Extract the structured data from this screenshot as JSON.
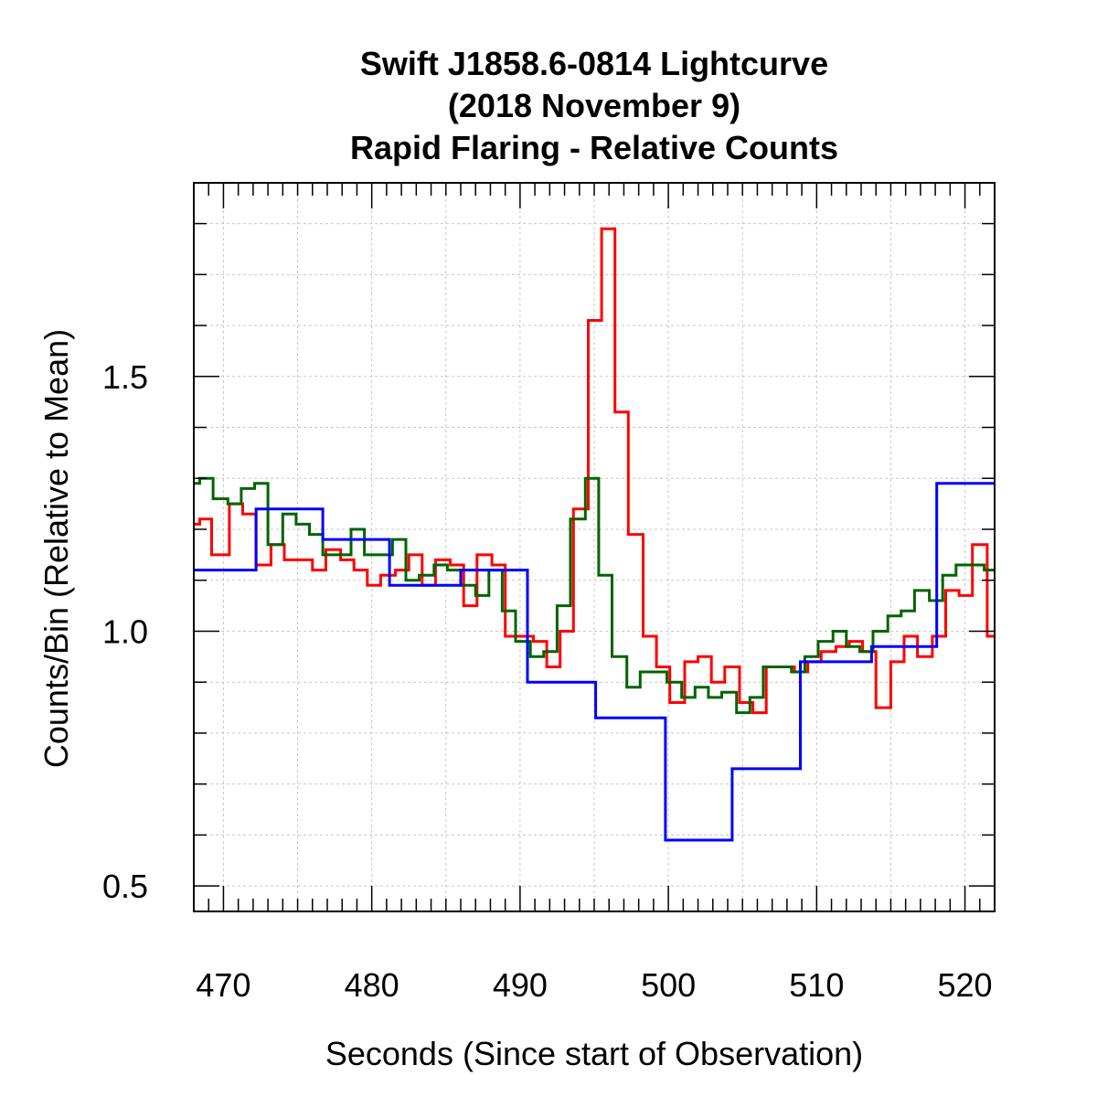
{
  "chart_data": {
    "type": "line",
    "title": [
      "Swift J1858.6-0814 Lightcurve",
      "(2018 November 9)",
      "Rapid Flaring - Relative Counts"
    ],
    "xlabel": "Seconds (Since start of Observation)",
    "ylabel": "Counts/Bin (Relative to Mean)",
    "xlim": [
      468,
      522
    ],
    "ylim": [
      0.45,
      1.88
    ],
    "x_ticks": [
      470,
      480,
      490,
      500,
      510,
      520
    ],
    "x_tick_labels": [
      "470",
      "480",
      "490",
      "500",
      "510",
      "520"
    ],
    "y_ticks": [
      0.5,
      1.0,
      1.5
    ],
    "y_tick_labels": [
      "0.5",
      "1.0",
      "1.5"
    ],
    "x_minor_step": 1,
    "y_minor_step": 0.1,
    "grid": true,
    "legend": "none",
    "series": [
      {
        "color": "#ff0000",
        "step": "post",
        "x": [
          468,
          468.4,
          469.2,
          470.4,
          471.3,
          472.2,
          473.2,
          474.1,
          475.0,
          476.0,
          476.9,
          477.9,
          478.8,
          479.7,
          480.6,
          481.6,
          482.5,
          483.4,
          484.3,
          485.3,
          486.2,
          487.1,
          488.1,
          489.0,
          489.9,
          490.9,
          491.8,
          492.7,
          493.6,
          494.6,
          495.5,
          496.4,
          497.3,
          498.3,
          499.2,
          500.1,
          501.1,
          502.0,
          502.9,
          503.8,
          504.8,
          505.7,
          506.6,
          507.5,
          508.5,
          509.4,
          510.3,
          511.3,
          512.2,
          513.1,
          514.0,
          515.0,
          515.9,
          516.8,
          517.8,
          518.7,
          519.6,
          520.5,
          521.5
        ],
        "y": [
          1.21,
          1.22,
          1.15,
          1.25,
          1.23,
          1.13,
          1.17,
          1.14,
          1.14,
          1.12,
          1.16,
          1.14,
          1.12,
          1.09,
          1.11,
          1.12,
          1.15,
          1.09,
          1.14,
          1.13,
          1.05,
          1.15,
          1.13,
          0.99,
          0.99,
          0.98,
          0.93,
          1.0,
          1.24,
          1.61,
          1.79,
          1.43,
          1.19,
          0.99,
          0.93,
          0.86,
          0.94,
          0.95,
          0.9,
          0.93,
          0.86,
          0.84,
          0.93,
          0.93,
          0.92,
          0.94,
          0.96,
          0.97,
          0.98,
          0.96,
          0.85,
          0.94,
          0.99,
          0.95,
          0.99,
          1.08,
          1.07,
          1.17,
          0.99
        ],
        "x_end": 522
      },
      {
        "color": "#006400",
        "step": "post",
        "x": [
          468,
          468.4,
          469.3,
          470.3,
          471.2,
          472.1,
          473.0,
          474.0,
          474.9,
          475.8,
          476.7,
          477.7,
          478.6,
          479.5,
          480.5,
          481.4,
          482.3,
          483.2,
          484.2,
          485.1,
          486.0,
          487.0,
          487.9,
          488.8,
          489.7,
          490.7,
          491.6,
          492.5,
          493.4,
          494.4,
          495.3,
          496.2,
          497.2,
          498.1,
          499.0,
          499.9,
          500.9,
          501.8,
          502.7,
          503.6,
          504.6,
          505.5,
          506.4,
          507.4,
          508.3,
          509.2,
          510.1,
          511.1,
          512.0,
          512.9,
          513.8,
          514.8,
          515.7,
          516.6,
          517.6,
          518.5,
          519.4,
          520.3,
          521.3
        ],
        "y": [
          1.29,
          1.3,
          1.26,
          1.25,
          1.28,
          1.29,
          1.17,
          1.23,
          1.21,
          1.19,
          1.15,
          1.15,
          1.2,
          1.15,
          1.15,
          1.18,
          1.1,
          1.11,
          1.13,
          1.12,
          1.09,
          1.07,
          1.12,
          1.04,
          0.98,
          0.95,
          0.96,
          1.05,
          1.22,
          1.3,
          1.11,
          0.95,
          0.89,
          0.92,
          0.92,
          0.9,
          0.87,
          0.89,
          0.87,
          0.88,
          0.84,
          0.87,
          0.93,
          0.93,
          0.92,
          0.95,
          0.98,
          1.0,
          0.97,
          0.96,
          1.0,
          1.03,
          1.04,
          1.08,
          1.06,
          1.11,
          1.13,
          1.13,
          1.12
        ],
        "x_end": 522
      },
      {
        "color": "#0000ff",
        "step": "post",
        "x": [
          468,
          472.2,
          476.7,
          481.2,
          486.0,
          490.5,
          495.1,
          499.8,
          504.3,
          508.9,
          513.7,
          518.1
        ],
        "y": [
          1.12,
          1.24,
          1.18,
          1.09,
          1.12,
          0.9,
          0.83,
          0.59,
          0.73,
          0.94,
          0.97,
          1.29
        ],
        "x_end": 522
      }
    ]
  }
}
